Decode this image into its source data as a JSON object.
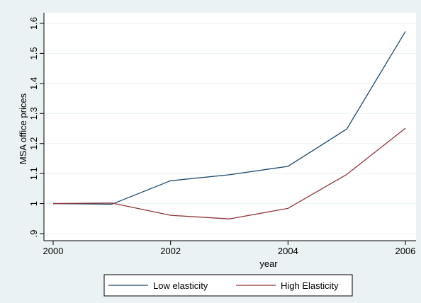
{
  "chart_data": {
    "type": "line",
    "xlabel": "year",
    "ylabel": "MSA office prices",
    "x": [
      2000,
      2001,
      2002,
      2003,
      2004,
      2005,
      2006
    ],
    "xlim": [
      2000,
      2006
    ],
    "ylim": [
      0.9,
      1.6
    ],
    "x_ticks": [
      2000,
      2002,
      2004,
      2006
    ],
    "x_tick_labels": [
      "2000",
      "2002",
      "2004",
      "2006"
    ],
    "y_ticks": [
      0.9,
      1.0,
      1.1,
      1.2,
      1.3,
      1.4,
      1.5,
      1.6
    ],
    "y_tick_labels": [
      ".9",
      "1",
      "1.1",
      "1.2",
      "1.3",
      "1.4",
      "1.5",
      "1.6"
    ],
    "grid": true,
    "legend_position": "bottom",
    "series": [
      {
        "name": "Low elasticity",
        "color": "#1a476f",
        "values": [
          1.0,
          0.998,
          1.076,
          1.096,
          1.124,
          1.248,
          1.573
        ]
      },
      {
        "name": "High Elasticity",
        "color": "#90353b",
        "values": [
          1.0,
          1.002,
          0.961,
          0.949,
          0.984,
          1.097,
          1.251
        ]
      }
    ]
  }
}
